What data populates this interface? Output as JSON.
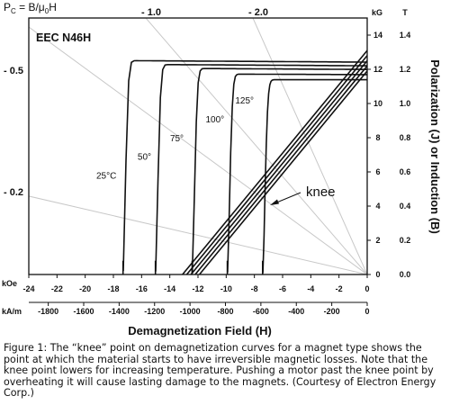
{
  "chart_data": {
    "type": "line",
    "title": "EEC N46H",
    "pc_label_prefix": "P",
    "pc_label_sub": "C",
    "pc_label_mid": " = B/μ",
    "pc_label_sub2": "0",
    "pc_label_end": "H",
    "xlabel": "Demagnetization Field (H)",
    "ylabel": "Polarization (J) or Induction (B)",
    "x_unit_primary": "kOe",
    "x_unit_secondary": "kA/m",
    "y_unit_left": "kG",
    "y_unit_right": "T",
    "xlim": [
      -24,
      0
    ],
    "ylim": [
      0,
      1.5
    ],
    "x_ticks_koe": [
      "-24",
      "-22",
      "-20",
      "-18",
      "-16",
      "-14",
      "-12",
      "-10",
      "-8",
      "-6",
      "-4",
      "-2",
      "0"
    ],
    "x_ticks_kam": [
      "-1800",
      "-1600",
      "-1400",
      "-1200",
      "-1000",
      "-800",
      "-600",
      "-400",
      "-200",
      "0"
    ],
    "y_ticks_T": [
      "0.0",
      "0.2",
      "0.4",
      "0.6",
      "0.8",
      "1.0",
      "1.2",
      "1.4"
    ],
    "y_ticks_kG": [
      "0",
      "2",
      "4",
      "6",
      "8",
      "10",
      "12",
      "14"
    ],
    "pc_top_labels": [
      "- 1.0",
      "- 2.0"
    ],
    "pc_left_labels": [
      "- 0.5",
      "- 0.2"
    ],
    "annotation": "knee",
    "series": [
      {
        "name": "25°C",
        "knee_x": -17.3,
        "J_sat": 1.23,
        "B_r": 1.31
      },
      {
        "name": "50°",
        "knee_x": -15.0,
        "J_sat": 1.21,
        "B_r": 1.28
      },
      {
        "name": "75°",
        "knee_x": -12.4,
        "J_sat": 1.19,
        "B_r": 1.25
      },
      {
        "name": "100°",
        "knee_x": -9.9,
        "J_sat": 1.16,
        "B_r": 1.22
      },
      {
        "name": "125°",
        "knee_x": -7.4,
        "J_sat": 1.13,
        "B_r": 1.19
      }
    ]
  },
  "caption": "Figure 1: The “knee” point on demagnetization curves for a magnet type shows the point at which the material starts to have irreversible magnetic losses. Note that the knee point lowers for increasing temperature. Pushing a motor past the knee point by overheating it will cause lasting damage to the magnets. (Courtesy of Electron Energy Corp.)"
}
